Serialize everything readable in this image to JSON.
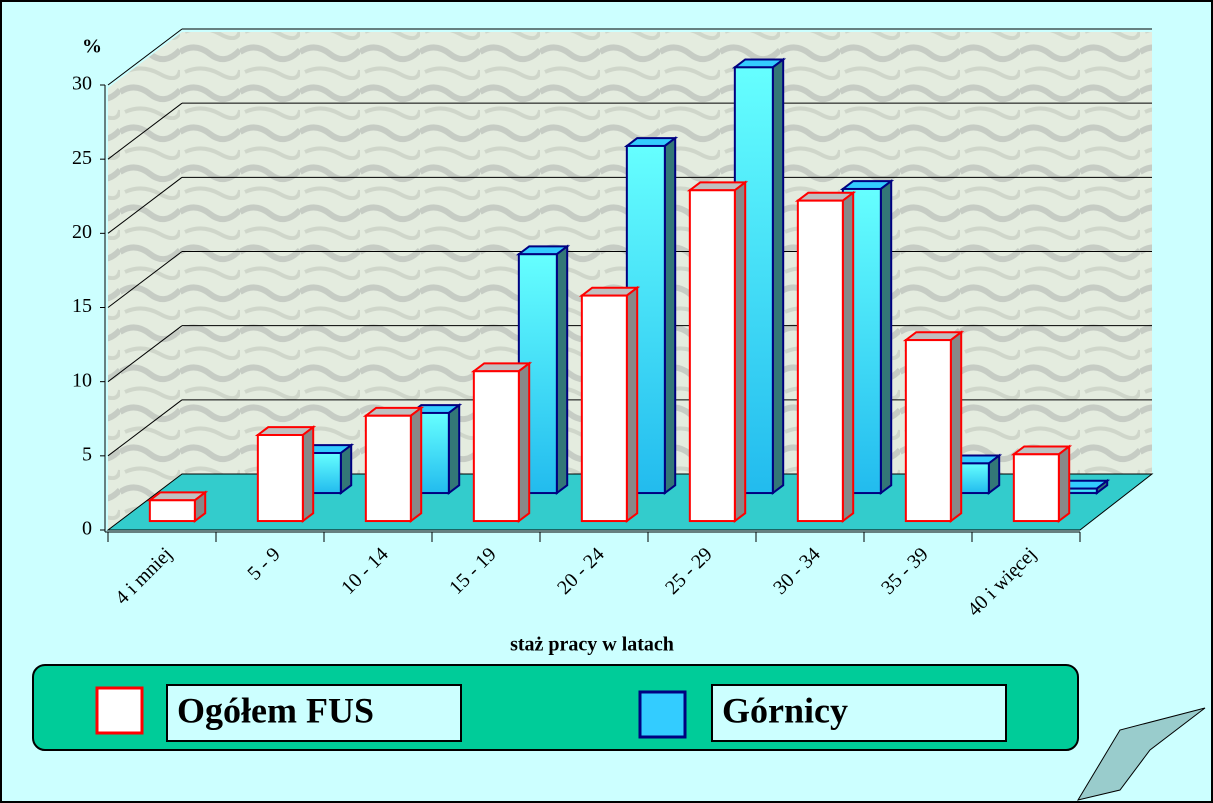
{
  "chart_data": {
    "type": "bar3d",
    "ylabel": "%",
    "xlabel": "staż pracy w latach",
    "categories": [
      "4 i mniej",
      "5 - 9",
      "10 - 14",
      "15 - 19",
      "20 - 24",
      "25 - 29",
      "30 - 34",
      "35 - 39",
      "40 i więcej"
    ],
    "series": [
      {
        "name": "Ogółem FUS",
        "color": "#ffffff",
        "edgecolor": "#ff0000",
        "values": [
          1.4,
          5.8,
          7.1,
          10.1,
          15.2,
          22.3,
          21.6,
          12.2,
          4.5
        ]
      },
      {
        "name": "Górnicy",
        "color": "#33ccff",
        "edgecolor": "#000080",
        "values": [
          0,
          2.7,
          5.4,
          16.1,
          23.4,
          28.7,
          20.5,
          2.0,
          0.3
        ]
      }
    ],
    "ylim": [
      0,
      30
    ],
    "yticks": [
      0,
      5,
      10,
      15,
      20,
      25,
      30
    ],
    "grid": true
  }
}
